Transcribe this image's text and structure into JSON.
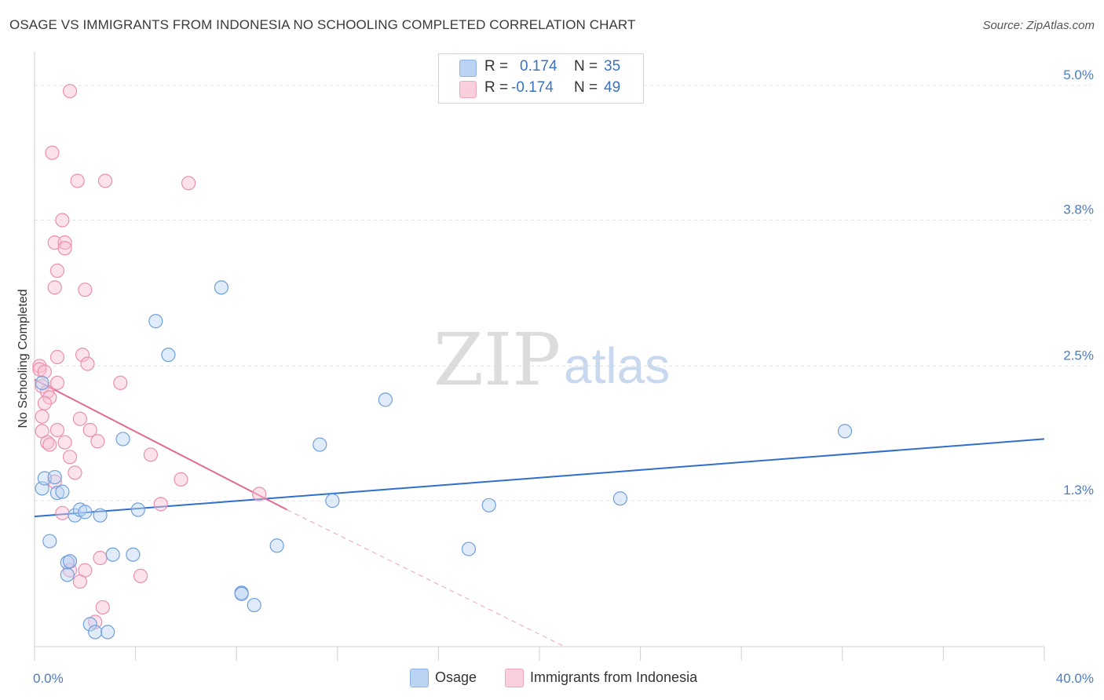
{
  "header": {
    "title": "OSAGE VS IMMIGRANTS FROM INDONESIA NO SCHOOLING COMPLETED CORRELATION CHART",
    "source": "Source: ZipAtlas.com"
  },
  "watermark": {
    "zip": "ZIP",
    "atlas": "atlas"
  },
  "legend": {
    "rows": [
      {
        "r_label": "R =",
        "r_value": "0.174",
        "n_label": "N =",
        "n_value": "35",
        "color": "#a9c7f0"
      },
      {
        "r_label": "R =",
        "r_value": "-0.174",
        "n_label": "N =",
        "n_value": "49",
        "color": "#f6b8cb"
      }
    ]
  },
  "bottom_legend": [
    {
      "label": "Osage",
      "color": "#a9c7f0"
    },
    {
      "label": "Immigrants from Indonesia",
      "color": "#f6b8cb"
    }
  ],
  "chart_data": {
    "type": "scatter",
    "ylabel": "No Schooling Completed",
    "xlim": [
      0,
      40
    ],
    "ylim": [
      0,
      5.3
    ],
    "x_tick_labels": [
      "0.0%",
      "40.0%"
    ],
    "y_ticks": [
      {
        "value": 1.3,
        "label": "1.3%"
      },
      {
        "value": 2.5,
        "label": "2.5%"
      },
      {
        "value": 3.8,
        "label": "3.8%"
      },
      {
        "value": 5.0,
        "label": "5.0%"
      }
    ],
    "grid": "dashed horizontal",
    "colors": {
      "osage": "#6f9fdc",
      "indonesia": "#ea8fae",
      "osage_line": "#2f6fcc",
      "indonesia_line": "#e06a93"
    },
    "series": [
      {
        "name": "Osage",
        "points": [
          [
            0.3,
            2.35
          ],
          [
            0.3,
            1.41
          ],
          [
            0.4,
            1.5
          ],
          [
            0.8,
            1.51
          ],
          [
            0.9,
            1.37
          ],
          [
            1.1,
            1.38
          ],
          [
            0.6,
            0.94
          ],
          [
            1.3,
            0.75
          ],
          [
            1.6,
            1.17
          ],
          [
            1.8,
            1.22
          ],
          [
            2.0,
            1.2
          ],
          [
            2.6,
            1.17
          ],
          [
            1.4,
            0.76
          ],
          [
            1.3,
            0.64
          ],
          [
            2.2,
            0.2
          ],
          [
            2.4,
            0.13
          ],
          [
            2.9,
            0.13
          ],
          [
            3.1,
            0.82
          ],
          [
            3.9,
            0.82
          ],
          [
            3.5,
            1.85
          ],
          [
            4.1,
            1.22
          ],
          [
            4.8,
            2.9
          ],
          [
            5.3,
            2.6
          ],
          [
            7.4,
            3.2
          ],
          [
            8.2,
            0.48
          ],
          [
            8.7,
            0.37
          ],
          [
            9.6,
            0.9
          ],
          [
            11.3,
            1.8
          ],
          [
            11.8,
            1.3
          ],
          [
            13.9,
            2.2
          ],
          [
            18.0,
            1.26
          ],
          [
            17.2,
            0.87
          ],
          [
            23.2,
            1.32
          ],
          [
            32.1,
            1.92
          ],
          [
            8.2,
            0.47
          ]
        ],
        "trend": [
          [
            0,
            1.16
          ],
          [
            40,
            1.85
          ]
        ]
      },
      {
        "name": "Immigrants from Indonesia",
        "points": [
          [
            1.4,
            4.95
          ],
          [
            0.7,
            4.4
          ],
          [
            1.7,
            4.15
          ],
          [
            2.8,
            4.15
          ],
          [
            6.1,
            4.13
          ],
          [
            1.1,
            3.8
          ],
          [
            0.8,
            3.6
          ],
          [
            1.2,
            3.6
          ],
          [
            1.2,
            3.55
          ],
          [
            0.9,
            3.35
          ],
          [
            0.8,
            3.2
          ],
          [
            2.0,
            3.18
          ],
          [
            0.2,
            2.5
          ],
          [
            0.2,
            2.47
          ],
          [
            0.4,
            2.45
          ],
          [
            0.9,
            2.58
          ],
          [
            1.9,
            2.6
          ],
          [
            2.1,
            2.52
          ],
          [
            0.3,
            2.32
          ],
          [
            0.5,
            2.27
          ],
          [
            0.6,
            2.22
          ],
          [
            0.4,
            2.17
          ],
          [
            0.9,
            2.35
          ],
          [
            3.4,
            2.35
          ],
          [
            0.3,
            2.05
          ],
          [
            0.3,
            1.92
          ],
          [
            0.9,
            1.93
          ],
          [
            1.8,
            2.03
          ],
          [
            2.2,
            1.93
          ],
          [
            0.5,
            1.82
          ],
          [
            0.6,
            1.8
          ],
          [
            1.2,
            1.82
          ],
          [
            2.5,
            1.83
          ],
          [
            1.4,
            1.69
          ],
          [
            4.6,
            1.71
          ],
          [
            1.6,
            1.55
          ],
          [
            0.8,
            1.47
          ],
          [
            5.8,
            1.49
          ],
          [
            1.1,
            1.19
          ],
          [
            5.0,
            1.27
          ],
          [
            8.9,
            1.36
          ],
          [
            1.4,
            0.76
          ],
          [
            1.4,
            0.68
          ],
          [
            2.0,
            0.68
          ],
          [
            2.6,
            0.79
          ],
          [
            1.8,
            0.58
          ],
          [
            4.2,
            0.63
          ],
          [
            2.7,
            0.35
          ],
          [
            2.4,
            0.22
          ]
        ],
        "trend": [
          [
            0,
            2.38
          ],
          [
            10,
            1.22
          ]
        ],
        "trend_dashed": [
          [
            10,
            1.22
          ],
          [
            21,
            0.0
          ]
        ]
      }
    ]
  }
}
